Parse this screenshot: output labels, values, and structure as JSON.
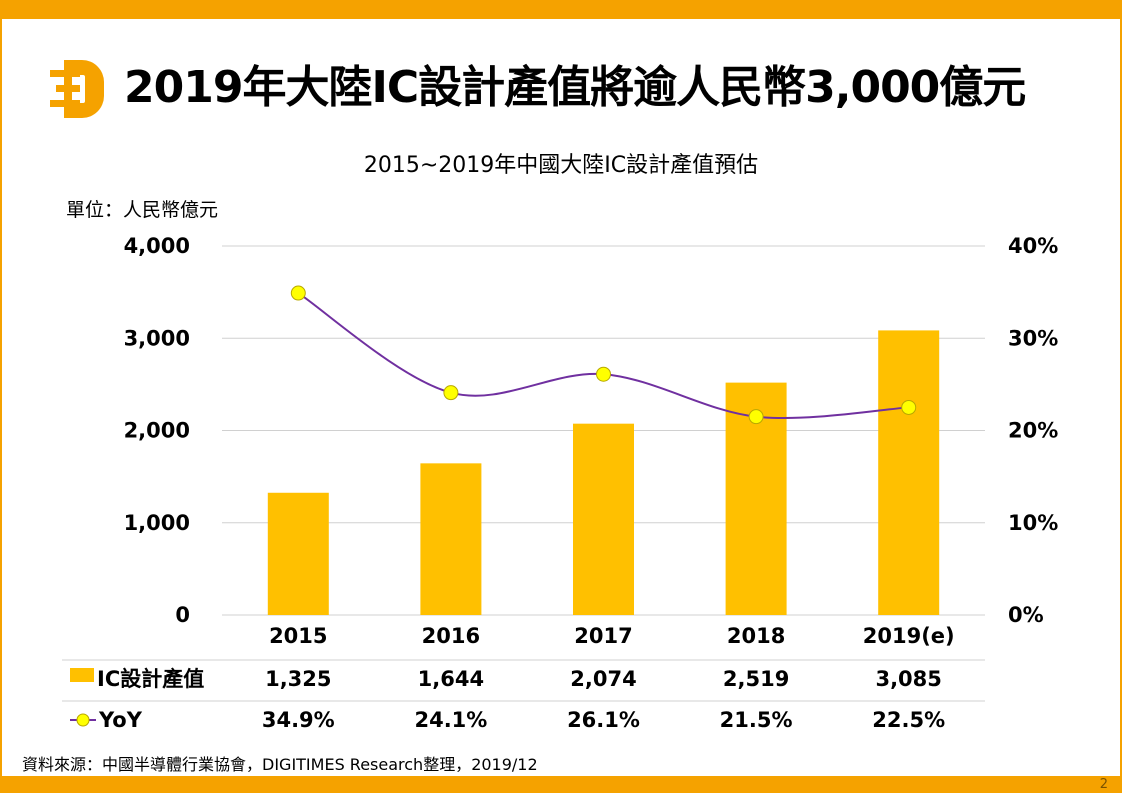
{
  "page": {
    "title": "2019年大陸IC設計產值將逾人民幣3,000億元",
    "source": "資料來源：中國半導體行業協會，DIGITIMES Research整理，2019/12",
    "page_number": "2",
    "accent_color": "#f5a200"
  },
  "chart_data": {
    "type": "bar",
    "title": "2015~2019年中國大陸IC設計產值預估",
    "unit_label": "單位：人民幣億元",
    "categories": [
      "2015",
      "2016",
      "2017",
      "2018",
      "2019(e)"
    ],
    "series": [
      {
        "name": "IC設計產值",
        "type": "bar",
        "axis": "left",
        "color": "#ffc000",
        "values": [
          1325,
          1644,
          2074,
          2519,
          3085
        ],
        "labels": [
          "1,325",
          "1,644",
          "2,074",
          "2,519",
          "3,085"
        ]
      },
      {
        "name": "YoY",
        "type": "line",
        "axis": "right",
        "color": "#7030a0",
        "marker_color": "#ffff00",
        "values": [
          34.9,
          24.1,
          26.1,
          21.5,
          22.5
        ],
        "labels": [
          "34.9%",
          "24.1%",
          "26.1%",
          "21.5%",
          "22.5%"
        ]
      }
    ],
    "y_left": {
      "min": 0,
      "max": 4000,
      "ticks": [
        "0",
        "1,000",
        "2,000",
        "3,000",
        "4,000"
      ]
    },
    "y_right": {
      "min": 0,
      "max": 40,
      "ticks": [
        "0%",
        "10%",
        "20%",
        "30%",
        "40%"
      ]
    },
    "grid": true,
    "legend": "data-table-below"
  }
}
